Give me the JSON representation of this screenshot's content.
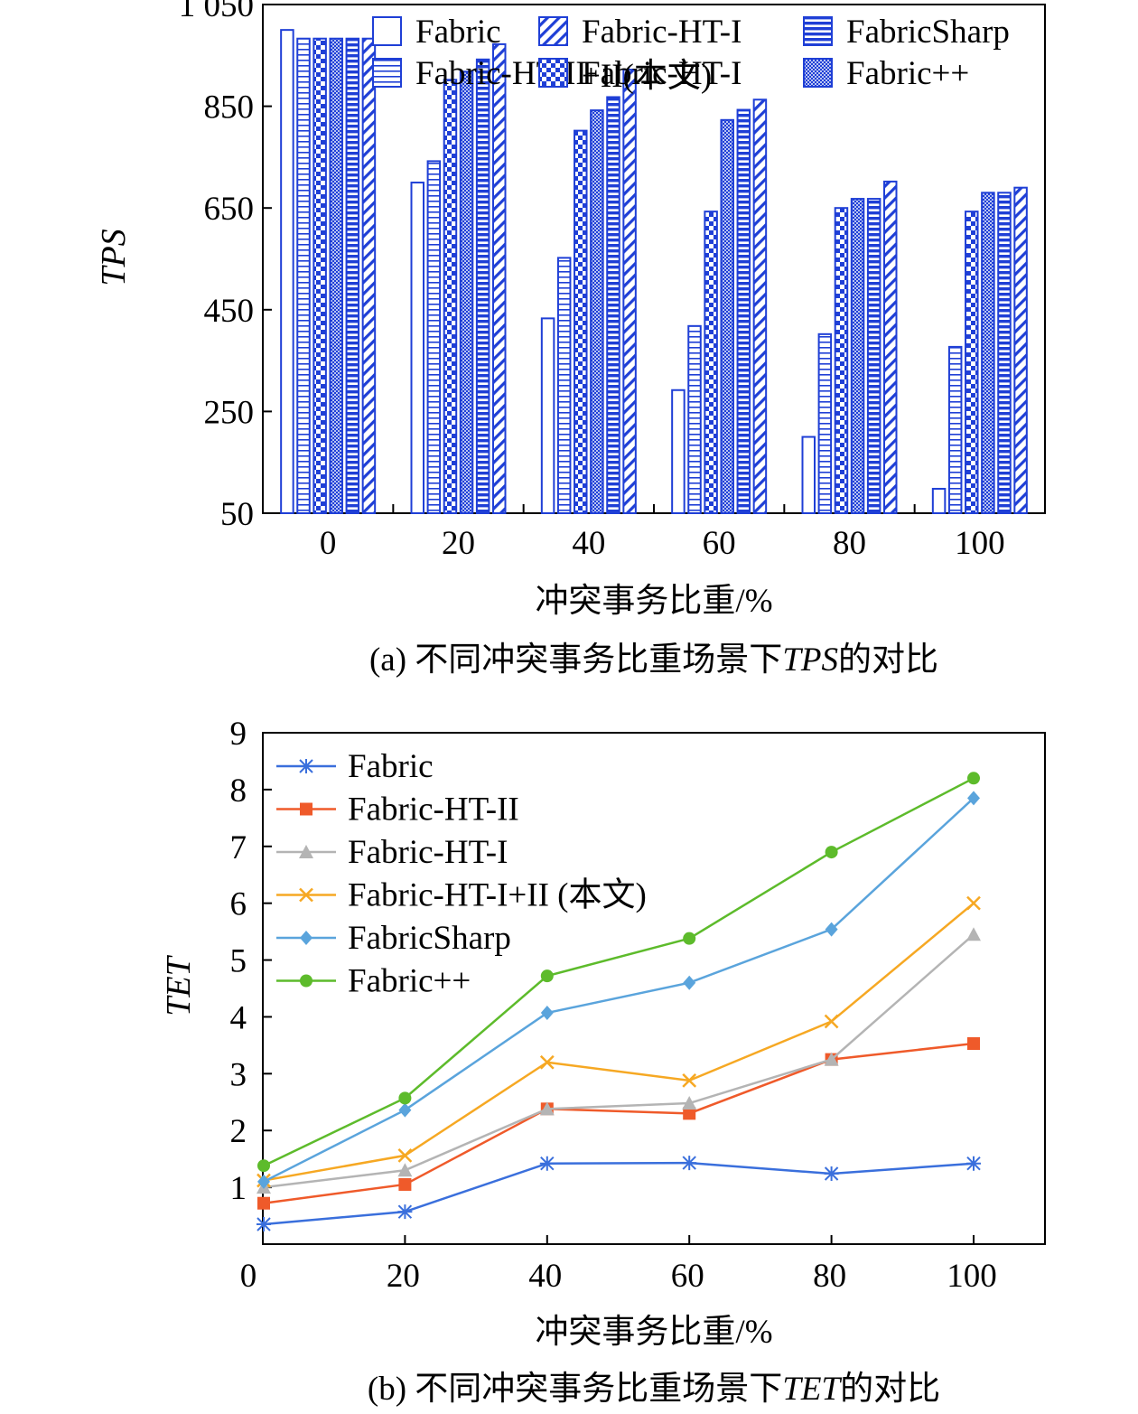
{
  "chart_data": [
    {
      "type": "bar",
      "ylabel": "TPS",
      "xlabel": "冲突事务比重/%",
      "caption": {
        "prefix": "(a)  不同冲突事务比重场景下",
        "italic": "TPS",
        "suffix": "的对比"
      },
      "categories": [
        "0",
        "20",
        "40",
        "60",
        "80",
        "100"
      ],
      "ylim": [
        50,
        1050
      ],
      "yticks": [
        50,
        250,
        450,
        650,
        850,
        1050
      ],
      "ytick_labels": [
        "50",
        "250",
        "450",
        "650",
        "850",
        "1 050"
      ],
      "legend_position": "top-right",
      "legend_order": [
        0,
        1,
        5,
        2,
        4,
        3
      ],
      "series": [
        {
          "name": "Fabric",
          "pattern": "empty",
          "values": [
            1000,
            700,
            433,
            292,
            200,
            98
          ]
        },
        {
          "name": "Fabric-HT-II",
          "pattern": "hlines",
          "values": [
            983,
            742,
            552,
            418,
            402,
            377
          ]
        },
        {
          "name": "Fabric-HT-I",
          "pattern": "checker",
          "values": [
            983,
            902,
            802,
            643,
            650,
            643
          ]
        },
        {
          "name": "Fabric++",
          "pattern": "dots",
          "values": [
            983,
            918,
            842,
            823,
            668,
            680
          ]
        },
        {
          "name": "FabricSharp",
          "pattern": "thicklines",
          "values": [
            983,
            942,
            868,
            843,
            668,
            680
          ]
        },
        {
          "name": "Fabric-HT-I+II(本文)",
          "legend_lines": [
            "Fabric-HT-I",
            "+II(本文)"
          ],
          "pattern": "diagonal",
          "values": [
            983,
            972,
            922,
            863,
            702,
            690
          ]
        }
      ],
      "colors": {
        "bar": "#1f3fd6",
        "axis": "#000000"
      }
    },
    {
      "type": "line",
      "ylabel": "TET",
      "xlabel": "冲突事务比重/%",
      "caption": {
        "prefix": "(b)  不同冲突事务比重场景下",
        "italic": "TET",
        "suffix": "的对比"
      },
      "x": [
        0,
        20,
        40,
        60,
        80,
        100
      ],
      "xlim": [
        0,
        110
      ],
      "xticks": [
        0,
        20,
        40,
        60,
        80,
        100
      ],
      "ylim": [
        0,
        9
      ],
      "yticks": [
        1,
        2,
        3,
        4,
        5,
        6,
        7,
        8,
        9
      ],
      "legend_position": "top-left",
      "series": [
        {
          "name": "Fabric",
          "marker": "star",
          "color": "#3a6fdc",
          "values": [
            0.35,
            0.57,
            1.42,
            1.43,
            1.24,
            1.42
          ]
        },
        {
          "name": "Fabric-HT-II",
          "marker": "square",
          "color": "#ef5a2a",
          "values": [
            0.72,
            1.05,
            2.38,
            2.3,
            3.25,
            3.53
          ]
        },
        {
          "name": "Fabric-HT-I",
          "marker": "triangle",
          "color": "#b4b4b4",
          "values": [
            1.0,
            1.3,
            2.38,
            2.48,
            3.25,
            5.45
          ]
        },
        {
          "name": "Fabric-HT-I+II (本文)",
          "marker": "x",
          "color": "#f6a823",
          "values": [
            1.12,
            1.56,
            3.2,
            2.88,
            3.92,
            6.0
          ]
        },
        {
          "name": "FabricSharp",
          "marker": "diamond",
          "color": "#5aa4dc",
          "values": [
            1.1,
            2.36,
            4.07,
            4.6,
            5.54,
            7.85
          ]
        },
        {
          "name": "Fabric++",
          "marker": "circle",
          "color": "#5dbb2b",
          "values": [
            1.38,
            2.57,
            4.72,
            5.38,
            6.9,
            8.2
          ]
        }
      ]
    }
  ]
}
